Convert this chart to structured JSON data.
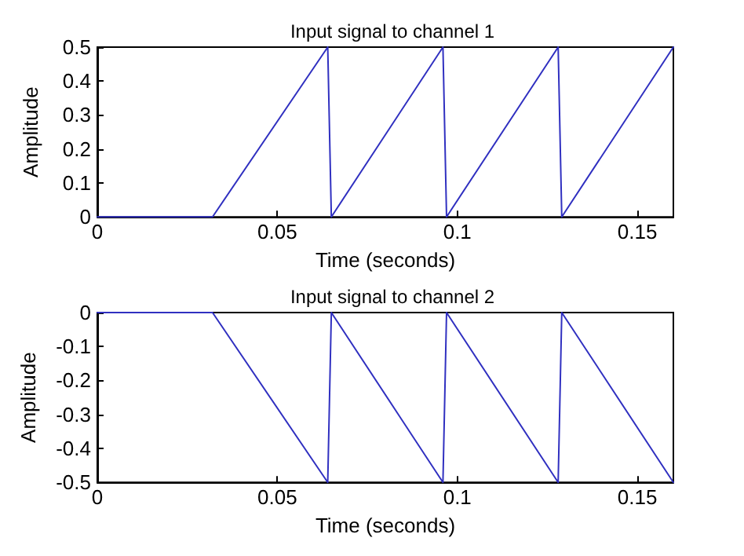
{
  "chart_data": [
    {
      "type": "line",
      "title": "Input signal to channel 1",
      "xlabel": "Time (seconds)",
      "ylabel": "Amplitude",
      "x": [
        0,
        0.032,
        0.064,
        0.065,
        0.096,
        0.097,
        0.128,
        0.129,
        0.16
      ],
      "series": [
        {
          "color": "#3030c0",
          "values": [
            0,
            0,
            0.5,
            0,
            0.5,
            0,
            0.5,
            0,
            0.5
          ]
        }
      ],
      "xlim": [
        0,
        0.16
      ],
      "xticks": [
        0,
        0.05,
        0.1,
        0.15
      ],
      "ylim": [
        0,
        0.5
      ],
      "yticks": [
        0,
        0.1,
        0.2,
        0.3,
        0.4,
        0.5
      ],
      "grid": false,
      "marker": "none",
      "line_style": "solid"
    },
    {
      "type": "line",
      "title": "Input signal to channel 2",
      "xlabel": "Time (seconds)",
      "ylabel": "Amplitude",
      "x": [
        0,
        0.032,
        0.064,
        0.065,
        0.096,
        0.097,
        0.128,
        0.129,
        0.16
      ],
      "series": [
        {
          "color": "#3030c0",
          "values": [
            0,
            0,
            -0.5,
            0,
            -0.5,
            0,
            -0.5,
            0,
            -0.5
          ]
        }
      ],
      "xlim": [
        0,
        0.16
      ],
      "xticks": [
        0,
        0.05,
        0.1,
        0.15
      ],
      "ylim": [
        -0.5,
        0
      ],
      "yticks": [
        -0.5,
        -0.4,
        -0.3,
        -0.2,
        -0.1,
        0
      ],
      "grid": false,
      "marker": "none",
      "line_style": "solid"
    }
  ]
}
